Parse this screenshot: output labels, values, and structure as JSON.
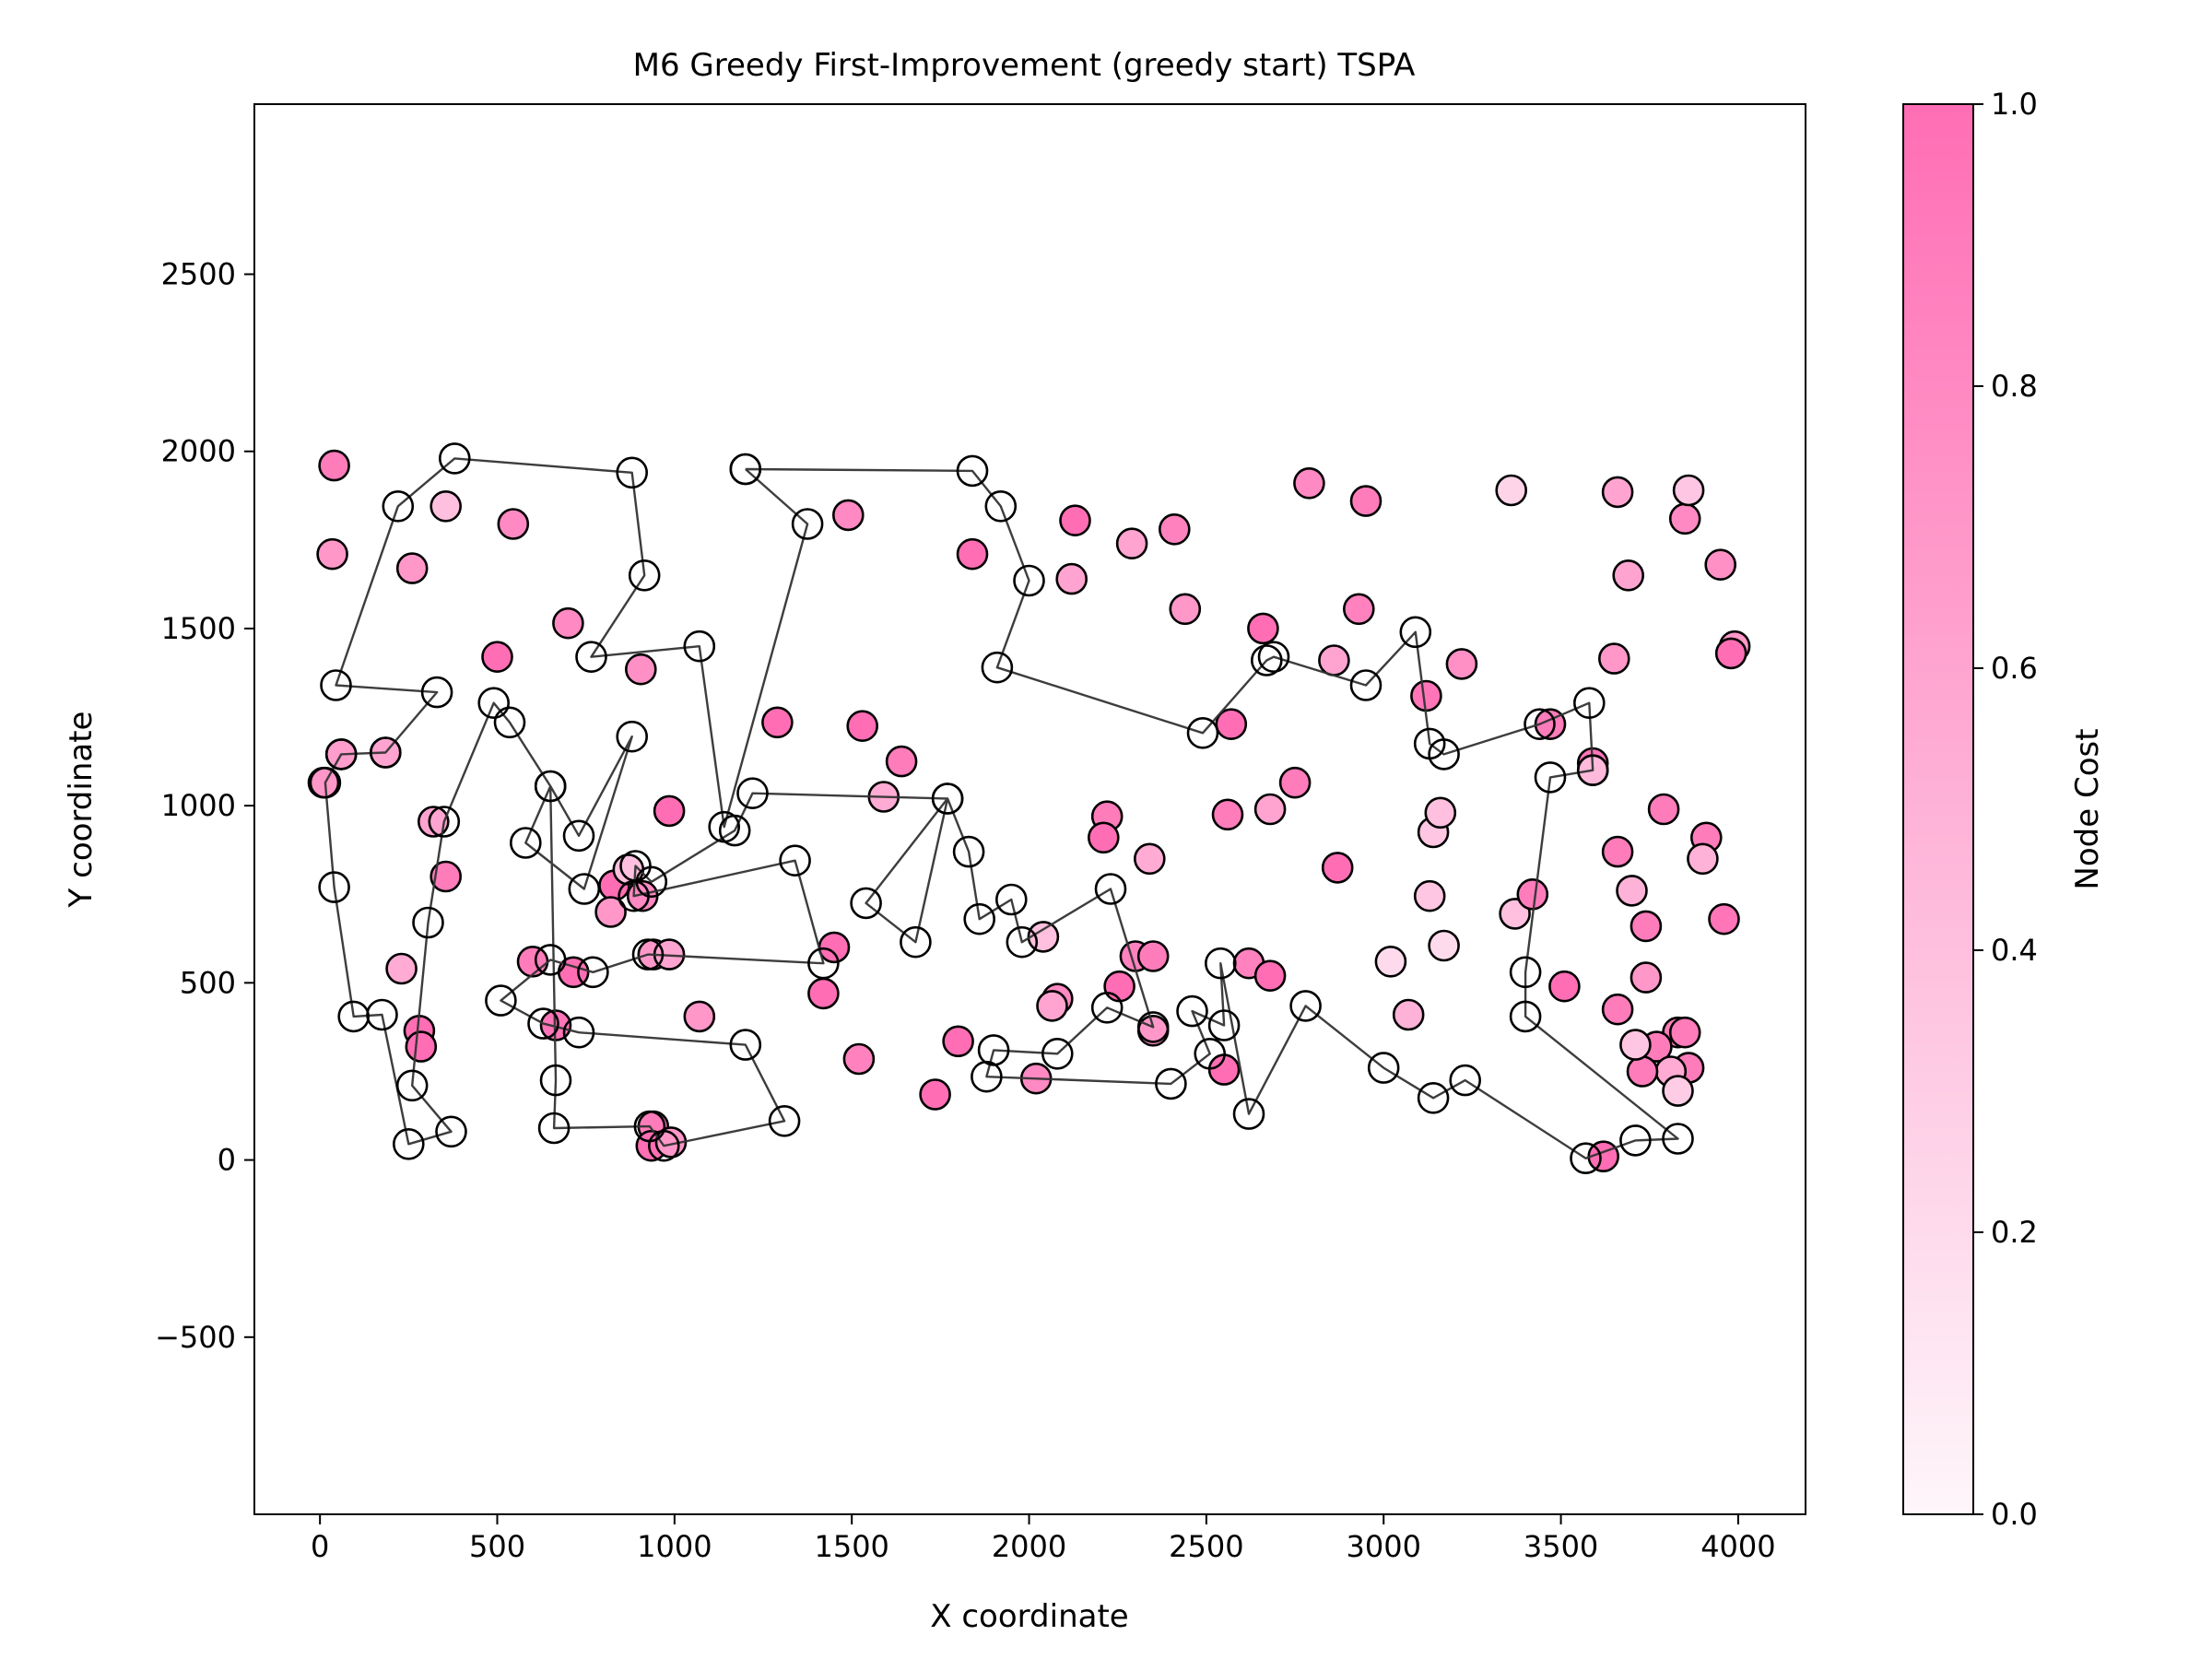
{
  "chart_data": {
    "type": "scatter",
    "title": "M6 Greedy First-Improvement (greedy start) TSPA",
    "xlabel": "X coordinate",
    "ylabel": "Y coordinate",
    "xlim": [
      -185,
      4190
    ],
    "ylim": [
      -1000,
      2980
    ],
    "x_ticks": [
      {
        "value": 0,
        "label": "0"
      },
      {
        "value": 500,
        "label": "500"
      },
      {
        "value": 1000,
        "label": "1000"
      },
      {
        "value": 1500,
        "label": "1500"
      },
      {
        "value": 2000,
        "label": "2000"
      },
      {
        "value": 2500,
        "label": "2500"
      },
      {
        "value": 3000,
        "label": "3000"
      },
      {
        "value": 3500,
        "label": "3500"
      },
      {
        "value": 4000,
        "label": "4000"
      }
    ],
    "y_ticks": [
      {
        "value": -500,
        "label": "−500"
      },
      {
        "value": 0,
        "label": "0"
      },
      {
        "value": 500,
        "label": "500"
      },
      {
        "value": 1000,
        "label": "1000"
      },
      {
        "value": 1500,
        "label": "1500"
      },
      {
        "value": 2000,
        "label": "2000"
      },
      {
        "value": 2500,
        "label": "2500"
      }
    ],
    "grid": false,
    "colorbar": {
      "label": "Node Cost",
      "range": [
        0,
        1
      ],
      "color_low": "#fef6fa",
      "color_high": "#ff6eb4",
      "ticks": [
        {
          "value": 0.0,
          "label": "0.0"
        },
        {
          "value": 0.2,
          "label": "0.2"
        },
        {
          "value": 0.4,
          "label": "0.4"
        },
        {
          "value": 0.6,
          "label": "0.6"
        },
        {
          "value": 0.8,
          "label": "0.8"
        },
        {
          "value": 1.0,
          "label": "1.0"
        }
      ]
    },
    "route_color": "#333333",
    "nodes": [
      [
        40,
        1960,
        0.9
      ],
      [
        35,
        1710,
        0.7
      ],
      [
        260,
        1670,
        0.7
      ],
      [
        355,
        1845,
        0.4
      ],
      [
        545,
        1795,
        0.8
      ],
      [
        700,
        1515,
        0.8
      ],
      [
        355,
        800,
        0.9
      ],
      [
        500,
        1420,
        1.0
      ],
      [
        905,
        1385,
        0.75
      ],
      [
        1530,
        1225,
        1.0
      ],
      [
        1290,
        1235,
        1.0
      ],
      [
        1640,
        1125,
        0.9
      ],
      [
        1490,
        1820,
        0.8
      ],
      [
        1840,
        1710,
        1.0
      ],
      [
        2130,
        1805,
        1.0
      ],
      [
        2120,
        1640,
        0.6
      ],
      [
        2290,
        1740,
        0.6
      ],
      [
        2410,
        1780,
        0.85
      ],
      [
        2440,
        1555,
        0.7
      ],
      [
        2790,
        1910,
        0.8
      ],
      [
        2950,
        1860,
        0.9
      ],
      [
        2930,
        1555,
        0.85
      ],
      [
        2660,
        1500,
        1.0
      ],
      [
        2570,
        1230,
        1.0
      ],
      [
        2560,
        975,
        0.9
      ],
      [
        2680,
        990,
        0.6
      ],
      [
        2750,
        1065,
        0.9
      ],
      [
        2860,
        1410,
        0.6
      ],
      [
        2870,
        825,
        1.0
      ],
      [
        3220,
        1400,
        0.75
      ],
      [
        3120,
        1310,
        0.95
      ],
      [
        2220,
        970,
        0.9
      ],
      [
        2210,
        910,
        1.0
      ],
      [
        2340,
        850,
        0.55
      ],
      [
        2300,
        575,
        0.85
      ],
      [
        2350,
        575,
        0.9
      ],
      [
        2255,
        490,
        1.0
      ],
      [
        2080,
        455,
        0.8
      ],
      [
        2065,
        435,
        0.6
      ],
      [
        2350,
        365,
        0.7
      ],
      [
        2550,
        255,
        1.0
      ],
      [
        2620,
        555,
        0.85
      ],
      [
        2680,
        520,
        1.0
      ],
      [
        1800,
        335,
        1.0
      ],
      [
        1735,
        185,
        1.0
      ],
      [
        1520,
        285,
        0.85
      ],
      [
        1450,
        600,
        1.0
      ],
      [
        1420,
        470,
        1.0
      ],
      [
        1590,
        1025,
        0.55
      ],
      [
        985,
        985,
        1.0
      ],
      [
        940,
        580,
        0.7
      ],
      [
        985,
        580,
        0.6
      ],
      [
        1070,
        405,
        0.7
      ],
      [
        600,
        560,
        0.9
      ],
      [
        715,
        530,
        1.0
      ],
      [
        665,
        380,
        0.95
      ],
      [
        320,
        955,
        0.6
      ],
      [
        280,
        365,
        1.0
      ],
      [
        285,
        320,
        1.0
      ],
      [
        230,
        540,
        0.55
      ],
      [
        185,
        1150,
        0.6
      ],
      [
        10,
        1065,
        0.7
      ],
      [
        60,
        1145,
        0.65
      ],
      [
        910,
        745,
        0.8
      ],
      [
        830,
        775,
        1.0
      ],
      [
        820,
        700,
        0.7
      ],
      [
        870,
        820,
        0.4
      ],
      [
        940,
        95,
        0.9
      ],
      [
        935,
        40,
        1.0
      ],
      [
        990,
        50,
        0.7
      ],
      [
        2020,
        230,
        0.8
      ],
      [
        2040,
        630,
        0.4
      ],
      [
        3020,
        560,
        0.2
      ],
      [
        3070,
        410,
        0.5
      ],
      [
        3170,
        605,
        0.2
      ],
      [
        3130,
        745,
        0.35
      ],
      [
        3140,
        925,
        0.35
      ],
      [
        3160,
        980,
        0.4
      ],
      [
        3360,
        1890,
        0.25
      ],
      [
        3370,
        695,
        0.4
      ],
      [
        3420,
        750,
        0.9
      ],
      [
        3470,
        1230,
        0.9
      ],
      [
        3510,
        490,
        1.0
      ],
      [
        3590,
        1120,
        0.95
      ],
      [
        3650,
        1415,
        0.7
      ],
      [
        3660,
        1885,
        0.6
      ],
      [
        3690,
        1650,
        0.6
      ],
      [
        3700,
        760,
        0.5
      ],
      [
        3660,
        870,
        0.9
      ],
      [
        3660,
        425,
        0.9
      ],
      [
        3740,
        660,
        0.9
      ],
      [
        3740,
        515,
        0.7
      ],
      [
        3790,
        990,
        0.9
      ],
      [
        3910,
        910,
        0.9
      ],
      [
        3900,
        850,
        0.5
      ],
      [
        3850,
        1810,
        0.8
      ],
      [
        3860,
        1890,
        0.35
      ],
      [
        3950,
        1680,
        0.75
      ],
      [
        3990,
        1450,
        0.7
      ],
      [
        3980,
        1430,
        1.0
      ],
      [
        3960,
        680,
        0.95
      ],
      [
        3830,
        360,
        0.9
      ],
      [
        3850,
        360,
        0.9
      ],
      [
        3860,
        260,
        0.9
      ],
      [
        3770,
        320,
        0.9
      ],
      [
        3810,
        250,
        0.55
      ],
      [
        3730,
        250,
        0.9
      ],
      [
        3710,
        325,
        0.35
      ],
      [
        3830,
        195,
        0.3
      ],
      [
        3620,
        10,
        1.0
      ],
      [
        3590,
        1100,
        0.45
      ]
    ],
    "route": [
      [
        1200,
        1950
      ],
      [
        1840,
        1945
      ],
      [
        1920,
        1845
      ],
      [
        2000,
        1635
      ],
      [
        1910,
        1390
      ],
      [
        2490,
        1205
      ],
      [
        2670,
        1410
      ],
      [
        2690,
        1420
      ],
      [
        2950,
        1340
      ],
      [
        3090,
        1490
      ],
      [
        3130,
        1175
      ],
      [
        3170,
        1145
      ],
      [
        3440,
        1230
      ],
      [
        3580,
        1290
      ],
      [
        3590,
        1100
      ],
      [
        3470,
        1080
      ],
      [
        3400,
        530
      ],
      [
        3400,
        405
      ],
      [
        3830,
        60
      ],
      [
        3710,
        55
      ],
      [
        3570,
        5
      ],
      [
        3230,
        225
      ],
      [
        3140,
        175
      ],
      [
        3000,
        260
      ],
      [
        2780,
        435
      ],
      [
        2620,
        130
      ],
      [
        2540,
        555
      ],
      [
        2550,
        380
      ],
      [
        2460,
        420
      ],
      [
        2510,
        300
      ],
      [
        2400,
        215
      ],
      [
        1880,
        235
      ],
      [
        1900,
        310
      ],
      [
        2080,
        300
      ],
      [
        2220,
        430
      ],
      [
        2350,
        375
      ],
      [
        2230,
        765
      ],
      [
        1980,
        615
      ],
      [
        1950,
        735
      ],
      [
        1860,
        680
      ],
      [
        1830,
        870
      ],
      [
        1770,
        1020
      ],
      [
        1540,
        725
      ],
      [
        1680,
        615
      ],
      [
        1770,
        1020
      ],
      [
        1220,
        1035
      ],
      [
        1170,
        930
      ],
      [
        935,
        785
      ],
      [
        890,
        830
      ],
      [
        885,
        745
      ],
      [
        1340,
        845
      ],
      [
        1420,
        555
      ],
      [
        925,
        580
      ],
      [
        770,
        530
      ],
      [
        650,
        565
      ],
      [
        510,
        450
      ],
      [
        630,
        385
      ],
      [
        730,
        360
      ],
      [
        1200,
        325
      ],
      [
        1310,
        110
      ],
      [
        970,
        40
      ],
      [
        930,
        95
      ],
      [
        660,
        90
      ],
      [
        665,
        225
      ],
      [
        650,
        1055
      ],
      [
        580,
        895
      ],
      [
        745,
        765
      ],
      [
        880,
        1195
      ],
      [
        730,
        915
      ],
      [
        650,
        1055
      ],
      [
        535,
        1235
      ],
      [
        490,
        1290
      ],
      [
        350,
        955
      ],
      [
        305,
        670
      ],
      [
        260,
        210
      ],
      [
        370,
        80
      ],
      [
        250,
        45
      ],
      [
        175,
        410
      ],
      [
        95,
        405
      ],
      [
        40,
        770
      ],
      [
        15,
        1065
      ],
      [
        60,
        1145
      ],
      [
        185,
        1150
      ],
      [
        330,
        1320
      ],
      [
        45,
        1340
      ],
      [
        220,
        1845
      ],
      [
        380,
        1980
      ],
      [
        880,
        1940
      ],
      [
        915,
        1650
      ],
      [
        765,
        1420
      ],
      [
        1070,
        1450
      ],
      [
        1140,
        940
      ],
      [
        1375,
        1795
      ],
      [
        1200,
        1950
      ]
    ]
  }
}
